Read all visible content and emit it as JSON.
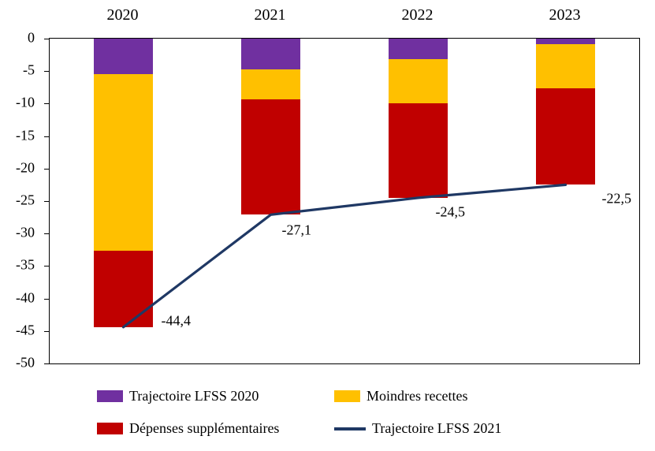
{
  "chart_data": {
    "type": "bar",
    "subtype": "stacked-bars-with-line",
    "categories": [
      "2020",
      "2021",
      "2022",
      "2023"
    ],
    "series": [
      {
        "key": "trajectoire-lfss-2020",
        "name": "Trajectoire LFSS 2020",
        "color": "#7030A0",
        "values": [
          -5.5,
          -4.7,
          -3.2,
          -0.8
        ]
      },
      {
        "key": "moindres-recettes",
        "name": "Moindres recettes",
        "color": "#FFC000",
        "values": [
          -27.2,
          -4.7,
          -6.7,
          -6.8
        ]
      },
      {
        "key": "depenses-supplementaires",
        "name": "Dépenses supplémentaires",
        "color": "#C00000",
        "values": [
          -11.7,
          -17.7,
          -14.6,
          -14.9
        ]
      }
    ],
    "line_series": {
      "key": "trajectoire-lfss-2021",
      "name": "Trajectoire LFSS 2021",
      "color": "#1F3864",
      "values": [
        -44.4,
        -27.1,
        -24.5,
        -22.5
      ],
      "labels": [
        "-44,4",
        "-27,1",
        "-24,5",
        "-22,5"
      ]
    },
    "ylim": [
      -50,
      0
    ],
    "yticks": [
      "0",
      "-5",
      "-10",
      "-15",
      "-20",
      "-25",
      "-30",
      "-35",
      "-40",
      "-45",
      "-50"
    ],
    "grid": false,
    "legend_position": "bottom"
  },
  "legend": {
    "items": [
      {
        "label": "Trajectoire LFSS 2020",
        "color": "#7030A0",
        "marker": "square"
      },
      {
        "label": "Moindres recettes",
        "color": "#FFC000",
        "marker": "square"
      },
      {
        "label": "Dépenses supplémentaires",
        "color": "#C00000",
        "marker": "square"
      },
      {
        "label": "Trajectoire LFSS 2021",
        "color": "#1F3864",
        "marker": "line"
      }
    ]
  }
}
